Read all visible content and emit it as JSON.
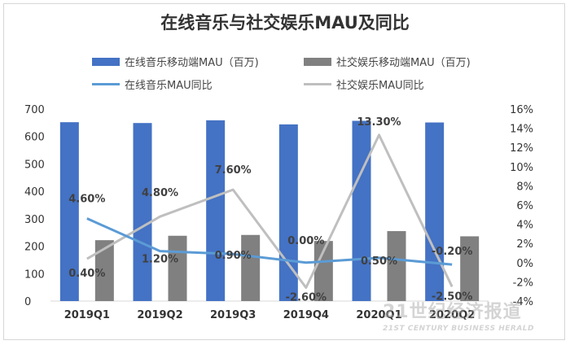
{
  "chart_data": {
    "type": "bar+line",
    "title": "在线音乐与社交娱乐MAU及同比",
    "categories": [
      "2019Q1",
      "2019Q2",
      "2019Q3",
      "2019Q4",
      "2020Q1",
      "2020Q2"
    ],
    "left_axis": {
      "min": 0,
      "max": 700,
      "step": 100,
      "ticks": [
        "0",
        "100",
        "200",
        "300",
        "400",
        "500",
        "600",
        "700"
      ]
    },
    "right_axis": {
      "min": -4,
      "max": 16,
      "step": 2,
      "ticks": [
        "-4%",
        "-2%",
        "0%",
        "2%",
        "4%",
        "6%",
        "8%",
        "10%",
        "12%",
        "14%",
        "16%"
      ]
    },
    "series": [
      {
        "name": "在线音乐移动端MAU（百万)",
        "kind": "bar",
        "axis": "left",
        "color": "#4472c4",
        "values": [
          652,
          649,
          659,
          644,
          657,
          651
        ]
      },
      {
        "name": "社交娱乐移动端MAU（百万)",
        "kind": "bar",
        "axis": "left",
        "color": "#808080",
        "values": [
          222,
          238,
          241,
          219,
          255,
          236
        ]
      },
      {
        "name": "在线音乐MAU同比",
        "kind": "line",
        "axis": "right",
        "color": "#5b9bd5",
        "values": [
          4.6,
          1.2,
          0.9,
          0.0,
          0.5,
          -0.2
        ],
        "labels": [
          "4.60%",
          "1.20%",
          "0.90%",
          "0.00%",
          "0.50%",
          "-0.20%"
        ]
      },
      {
        "name": "社交娱乐MAU同比",
        "kind": "line",
        "axis": "right",
        "color": "#bfbfbf",
        "values": [
          0.4,
          4.8,
          7.6,
          -2.6,
          13.3,
          -2.5
        ],
        "labels": [
          "0.40%",
          "4.80%",
          "7.60%",
          "-2.60%",
          "13.30%",
          "-2.50%"
        ]
      }
    ],
    "legend_position": "top"
  },
  "watermark": {
    "line1": "21世纪经济报道",
    "line2": "21ST CENTURY BUSINESS HERALD"
  }
}
